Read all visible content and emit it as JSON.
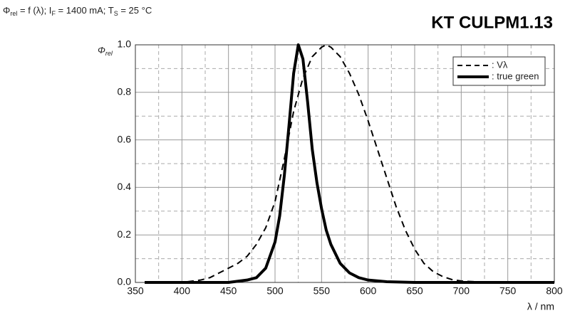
{
  "chart_data": {
    "type": "line",
    "title_parts": [
      "Φ",
      "rel",
      " = f (λ); I",
      "F",
      " = 1400 mA; T",
      "S",
      " = 25 °C"
    ],
    "product": "KT CULPM1.13",
    "ylabel_parts": [
      "Φ",
      "rel"
    ],
    "xlabel": "λ / nm",
    "xlim": [
      350,
      800
    ],
    "ylim": [
      0,
      1
    ],
    "xticks": [
      350,
      400,
      450,
      500,
      550,
      600,
      650,
      700,
      750,
      800
    ],
    "yticks": [
      {
        "value": 0,
        "label": "0.0"
      },
      0.2,
      0.4,
      0.6,
      0.8,
      {
        "value": 1,
        "label": "1.0"
      }
    ],
    "xminorticks": [
      375,
      425,
      475,
      525,
      575,
      625,
      675,
      725,
      775
    ],
    "yminorticks": [
      0.1,
      0.3,
      0.5,
      0.7,
      0.9
    ],
    "grid": true,
    "legend": "upper right",
    "series": [
      {
        "name": ": Vλ",
        "color": "#000000",
        "dash": true,
        "x": [
          360,
          400,
          420,
          430,
          440,
          450,
          460,
          470,
          480,
          490,
          500,
          510,
          520,
          530,
          540,
          550,
          555,
          560,
          570,
          580,
          590,
          600,
          610,
          620,
          630,
          640,
          650,
          660,
          670,
          680,
          690,
          700,
          720,
          740,
          800
        ],
        "values": [
          0,
          0,
          0.01,
          0.02,
          0.04,
          0.06,
          0.08,
          0.11,
          0.16,
          0.23,
          0.34,
          0.52,
          0.72,
          0.86,
          0.95,
          0.99,
          1.0,
          0.99,
          0.95,
          0.88,
          0.79,
          0.68,
          0.56,
          0.44,
          0.32,
          0.22,
          0.14,
          0.08,
          0.045,
          0.025,
          0.012,
          0.006,
          0.002,
          0,
          0
        ]
      },
      {
        "name": ": true green",
        "color": "#000000",
        "dash": false,
        "x": [
          360,
          450,
          470,
          480,
          490,
          500,
          505,
          510,
          515,
          520,
          525,
          530,
          535,
          540,
          545,
          550,
          555,
          560,
          570,
          580,
          590,
          600,
          620,
          650,
          700,
          800
        ],
        "values": [
          0,
          0,
          0.01,
          0.02,
          0.06,
          0.17,
          0.28,
          0.45,
          0.66,
          0.88,
          1.0,
          0.94,
          0.76,
          0.56,
          0.42,
          0.31,
          0.22,
          0.16,
          0.08,
          0.04,
          0.02,
          0.01,
          0.003,
          0,
          0,
          0
        ]
      }
    ]
  }
}
